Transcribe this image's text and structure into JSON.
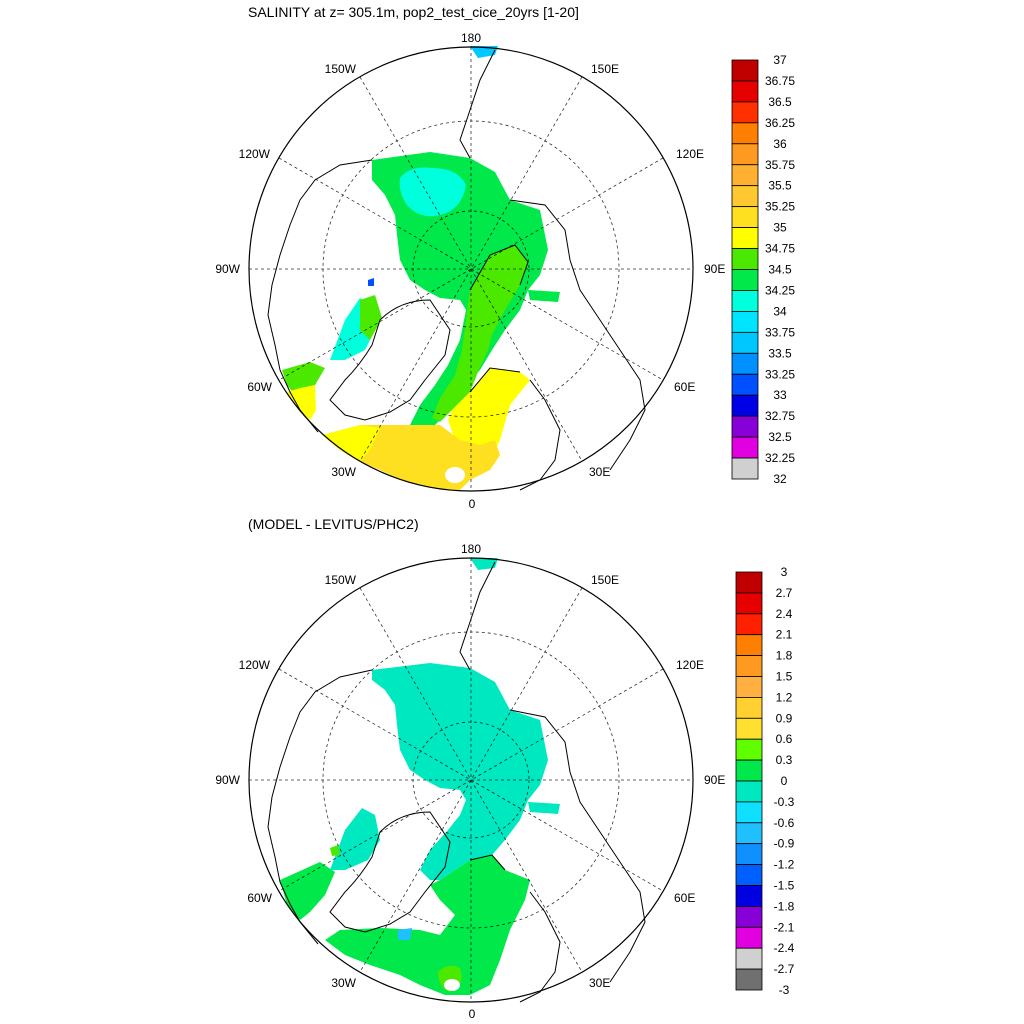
{
  "chart_data": [
    {
      "type": "polar-map",
      "title": "SALINITY at z= 305.1m, pop2_test_cice_20yrs [1-20]",
      "longitude_labels": [
        "180",
        "150E",
        "120E",
        "90E",
        "60E",
        "30E",
        "0",
        "30W",
        "60W",
        "90W",
        "120W",
        "150W"
      ],
      "colorbar": {
        "levels": [
          "37",
          "36.75",
          "36.5",
          "36.25",
          "36",
          "35.75",
          "35.5",
          "35.25",
          "35",
          "34.75",
          "34.5",
          "34.25",
          "34",
          "33.75",
          "33.5",
          "33.25",
          "33",
          "32.75",
          "32.5",
          "32.25",
          "32"
        ],
        "colors": [
          "#c00000",
          "#e60000",
          "#ff3000",
          "#ff8000",
          "#ff9a20",
          "#ffb030",
          "#ffc830",
          "#ffe020",
          "#ffff00",
          "#4be800",
          "#00e84a",
          "#00ffdc",
          "#00e5ff",
          "#00c8ff",
          "#0090ff",
          "#0050ff",
          "#0000e6",
          "#8800d8",
          "#e000e0",
          "#d0d0d0",
          "#707070"
        ]
      }
    },
    {
      "type": "polar-map",
      "title": "(MODEL - LEVITUS/PHC2)",
      "longitude_labels": [
        "180",
        "150E",
        "120E",
        "90E",
        "60E",
        "30E",
        "0",
        "30W",
        "60W",
        "90W",
        "120W",
        "150W"
      ],
      "colorbar": {
        "levels": [
          "3",
          "2.7",
          "2.4",
          "2.1",
          "1.8",
          "1.5",
          "1.2",
          "0.9",
          "0.6",
          "0.3",
          "0",
          "-0.3",
          "-0.6",
          "-0.9",
          "-1.2",
          "-1.5",
          "-1.8",
          "-2.1",
          "-2.4",
          "-2.7",
          "-3"
        ],
        "colors": [
          "#c00000",
          "#e60000",
          "#ff2000",
          "#ff8000",
          "#ff9a20",
          "#ffb040",
          "#ffd030",
          "#ffe030",
          "#60ff00",
          "#00e84a",
          "#00e8c0",
          "#10e0ff",
          "#20c0ff",
          "#1090ff",
          "#0060ff",
          "#0000e0",
          "#8800d8",
          "#e000e0",
          "#d0d0d0",
          "#707070"
        ]
      }
    }
  ]
}
